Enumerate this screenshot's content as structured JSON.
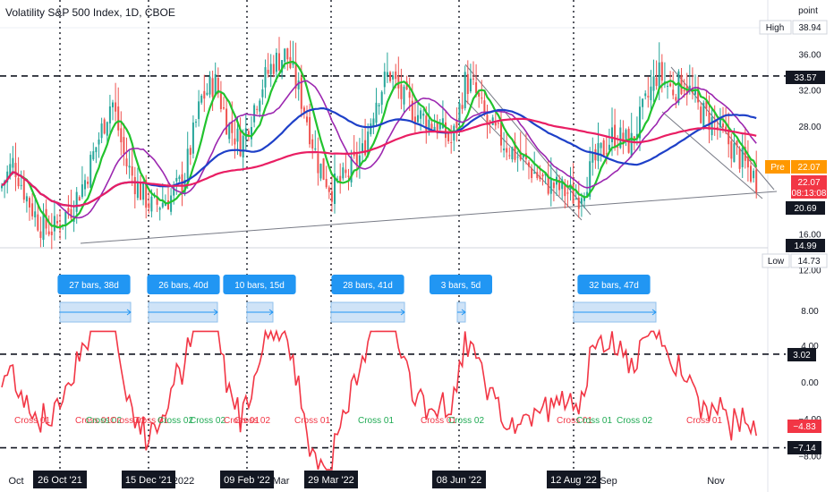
{
  "title": "Volatility S&P 500 Index, 1D, CBOE",
  "axis_unit": "point",
  "colors": {
    "up": "#26a69a",
    "down": "#ef5350",
    "green_ma": "#22c32e",
    "purple_ma": "#9c27b0",
    "blue_ma": "#1e40c8",
    "red_ma": "#e91e63",
    "osc": "#f23645",
    "measure_bg": "#cfe3f7",
    "measure_label": "#2196f3",
    "dark_label": "#131722",
    "pre": "#ff9800"
  },
  "price_ticks": [
    {
      "label": "36.00",
      "v": 36
    },
    {
      "label": "32.00",
      "v": 32
    },
    {
      "label": "28.00",
      "v": 28
    },
    {
      "label": "16.00",
      "v": 16
    },
    {
      "label": "12.00",
      "v": 12
    },
    {
      "label": "8.00",
      "v": 8
    },
    {
      "label": "4.00",
      "v": 4
    },
    {
      "label": "0.00",
      "v": 0
    },
    {
      "label": "−4.00",
      "v": -4
    },
    {
      "label": "−8.00",
      "v": -8
    }
  ],
  "x_ticks": [
    "Oct",
    "2022",
    "Mar",
    "Sep",
    "Nov"
  ],
  "date_labels": [
    "26 Oct '21",
    "15 Dec '21",
    "09 Feb '22",
    "29 Mar '22",
    "08 Jun '22",
    "12 Aug '22"
  ],
  "levels": [
    33.57,
    3.02,
    -7.14
  ],
  "badges": {
    "high_tag": "High",
    "high": "38.94",
    "low_tag": "Low",
    "low": "14.73",
    "pre_tag": "Pre",
    "pre": "22.07",
    "price": "22.07",
    "countdown": "08:13:08",
    "level_33": "33.57",
    "level_20": "20.69",
    "level_15": "14.99",
    "osc_302": "3.02",
    "osc_neg483": "−4.83",
    "osc_neg714": "−7.14"
  },
  "measurements": [
    {
      "label": "27 bars, 38d"
    },
    {
      "label": "26 bars, 40d"
    },
    {
      "label": "10 bars, 15d"
    },
    {
      "label": "28 bars, 41d"
    },
    {
      "label": "3 bars, 5d"
    },
    {
      "label": "32 bars, 47d"
    }
  ],
  "cross_labels": [
    {
      "text": "Cross 01",
      "color": "red"
    },
    {
      "text": "Cross 01",
      "color": "red"
    },
    {
      "text": "Cross 02",
      "color": "green"
    },
    {
      "text": "Cross 02",
      "color": "red"
    },
    {
      "text": "Cross 01",
      "color": "red"
    },
    {
      "text": "Cross 02",
      "color": "green"
    },
    {
      "text": "Cross 02",
      "color": "green"
    },
    {
      "text": "Cross 01",
      "color": "red"
    },
    {
      "text": "Cross 02",
      "color": "red"
    },
    {
      "text": "Cross 01",
      "color": "red"
    },
    {
      "text": "Cross 01",
      "color": "green"
    },
    {
      "text": "Cross 01",
      "color": "red"
    },
    {
      "text": "Cross 02",
      "color": "green"
    },
    {
      "text": "Cross 01",
      "color": "red"
    },
    {
      "text": "Cross 01",
      "color": "green"
    },
    {
      "text": "Cross 02",
      "color": "green"
    },
    {
      "text": "Cross 01",
      "color": "red"
    }
  ]
}
